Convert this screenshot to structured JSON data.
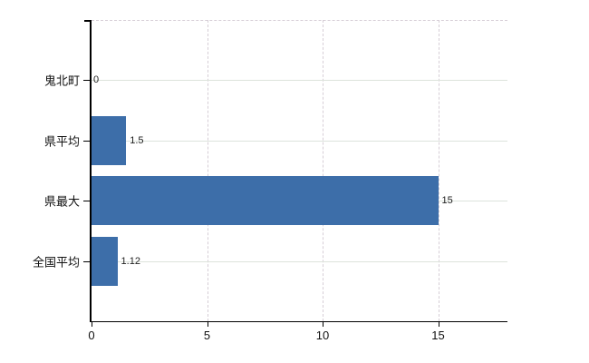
{
  "chart_data": {
    "type": "bar",
    "orientation": "horizontal",
    "title": "",
    "xlabel": "",
    "ylabel": "",
    "categories": [
      "鬼北町",
      "県平均",
      "県最大",
      "全国平均"
    ],
    "values": [
      0,
      1.5,
      15,
      1.12
    ],
    "value_labels": [
      "0",
      "1.5",
      "15",
      "1.12"
    ],
    "x_ticks": [
      0,
      5,
      10,
      15
    ],
    "x_tick_labels": [
      "0",
      "5",
      "10",
      "15"
    ],
    "xlim": [
      0,
      18
    ],
    "grid": {
      "horizontal_style": "solid",
      "vertical_style": "dashed",
      "top_border_style": "dashed"
    },
    "legend_position": "none",
    "colors": {
      "bar": "#3d6ea9",
      "axis": "#000000",
      "hgrid": "#dde3dc",
      "vgrid": "#d6ced6",
      "text": "#111111",
      "value_text": "#222222",
      "background": "#ffffff"
    }
  }
}
